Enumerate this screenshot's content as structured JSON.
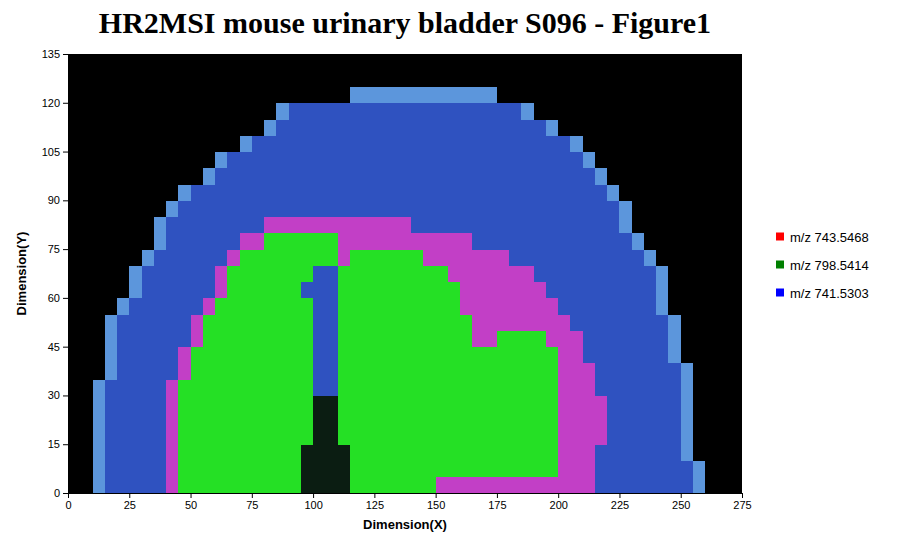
{
  "chart_data": {
    "type": "heatmap",
    "title": "HR2MSI mouse urinary bladder S096 - Figure1",
    "x_label": "Dimension(X)",
    "y_label": "Dimension(Y)",
    "xlim": [
      0,
      275
    ],
    "ylim": [
      0,
      135
    ],
    "xticks": [
      0,
      25,
      50,
      75,
      100,
      125,
      150,
      175,
      200,
      225,
      250,
      275
    ],
    "yticks": [
      0,
      15,
      30,
      45,
      60,
      75,
      90,
      105,
      120,
      135
    ],
    "legend": "right",
    "series": [
      {
        "name": "m/z 743.5468",
        "color": "#ff0000"
      },
      {
        "name": "m/z 798.5414",
        "color": "#008000"
      },
      {
        "name": "m/z 741.5303",
        "color": "#0000ff"
      }
    ],
    "x_bins": [
      0,
      5,
      10,
      15,
      20,
      25,
      30,
      35,
      40,
      45,
      50,
      55,
      60,
      65,
      70,
      75,
      80,
      85,
      90,
      95,
      100,
      105,
      110,
      115,
      120,
      125,
      130,
      135,
      140,
      145,
      150,
      155,
      160,
      165,
      170,
      175,
      180,
      185,
      190,
      195,
      200,
      205,
      210,
      215,
      220,
      225,
      230,
      235,
      240,
      245,
      250,
      255,
      260,
      265,
      270,
      275
    ],
    "y_bins": [
      0,
      5,
      10,
      15,
      20,
      25,
      30,
      35,
      40,
      45,
      50,
      55,
      60,
      65,
      70,
      75,
      80,
      85,
      90,
      95,
      100,
      105,
      110,
      115,
      120,
      125,
      130,
      135
    ],
    "cell_colors": [
      "#000000",
      "#2f52c0",
      "#5c96dc",
      "#c23fc6",
      "#25e025",
      "#0b1d12"
    ],
    "cells": [
      [
        0,
        0,
        2,
        1,
        1,
        1,
        1,
        1,
        3,
        4,
        4,
        4,
        4,
        4,
        4,
        4,
        4,
        4,
        4,
        5,
        5,
        5,
        5,
        4,
        4,
        4,
        4,
        4,
        4,
        4,
        3,
        3,
        3,
        3,
        3,
        3,
        3,
        3,
        3,
        3,
        3,
        3,
        3,
        1,
        1,
        1,
        1,
        1,
        1,
        1,
        1,
        2,
        0,
        0,
        0
      ],
      [
        0,
        0,
        2,
        1,
        1,
        1,
        1,
        1,
        3,
        4,
        4,
        4,
        4,
        4,
        4,
        4,
        4,
        4,
        4,
        5,
        5,
        5,
        5,
        4,
        4,
        4,
        4,
        4,
        4,
        4,
        4,
        4,
        4,
        4,
        4,
        4,
        4,
        4,
        4,
        4,
        3,
        3,
        3,
        1,
        1,
        1,
        1,
        1,
        1,
        1,
        1,
        2,
        0,
        0,
        0
      ],
      [
        0,
        0,
        2,
        1,
        1,
        1,
        1,
        1,
        3,
        4,
        4,
        4,
        4,
        4,
        4,
        4,
        4,
        4,
        4,
        5,
        5,
        5,
        5,
        4,
        4,
        4,
        4,
        4,
        4,
        4,
        4,
        4,
        4,
        4,
        4,
        4,
        4,
        4,
        4,
        4,
        3,
        3,
        3,
        1,
        1,
        1,
        1,
        1,
        1,
        1,
        2,
        0,
        0,
        0,
        0
      ],
      [
        0,
        0,
        2,
        1,
        1,
        1,
        1,
        1,
        3,
        4,
        4,
        4,
        4,
        4,
        4,
        4,
        4,
        4,
        4,
        4,
        5,
        5,
        4,
        4,
        4,
        4,
        4,
        4,
        4,
        4,
        4,
        4,
        4,
        4,
        4,
        4,
        4,
        4,
        4,
        4,
        3,
        3,
        3,
        3,
        1,
        1,
        1,
        1,
        1,
        1,
        2,
        0,
        0,
        0,
        0
      ],
      [
        0,
        0,
        2,
        1,
        1,
        1,
        1,
        1,
        3,
        4,
        4,
        4,
        4,
        4,
        4,
        4,
        4,
        4,
        4,
        4,
        5,
        5,
        4,
        4,
        4,
        4,
        4,
        4,
        4,
        4,
        4,
        4,
        4,
        4,
        4,
        4,
        4,
        4,
        4,
        4,
        3,
        3,
        3,
        3,
        1,
        1,
        1,
        1,
        1,
        1,
        2,
        0,
        0,
        0,
        0
      ],
      [
        0,
        0,
        2,
        1,
        1,
        1,
        1,
        1,
        3,
        4,
        4,
        4,
        4,
        4,
        4,
        4,
        4,
        4,
        4,
        4,
        5,
        5,
        4,
        4,
        4,
        4,
        4,
        4,
        4,
        4,
        4,
        4,
        4,
        4,
        4,
        4,
        4,
        4,
        4,
        4,
        3,
        3,
        3,
        3,
        1,
        1,
        1,
        1,
        1,
        1,
        2,
        0,
        0,
        0,
        0
      ],
      [
        0,
        0,
        2,
        1,
        1,
        1,
        1,
        1,
        3,
        4,
        4,
        4,
        4,
        4,
        4,
        4,
        4,
        4,
        4,
        4,
        1,
        1,
        4,
        4,
        4,
        4,
        4,
        4,
        4,
        4,
        4,
        4,
        4,
        4,
        4,
        4,
        4,
        4,
        4,
        4,
        3,
        3,
        3,
        1,
        1,
        1,
        1,
        1,
        1,
        1,
        2,
        0,
        0,
        0,
        0
      ],
      [
        0,
        0,
        0,
        2,
        1,
        1,
        1,
        1,
        1,
        3,
        4,
        4,
        4,
        4,
        4,
        4,
        4,
        4,
        4,
        4,
        1,
        1,
        4,
        4,
        4,
        4,
        4,
        4,
        4,
        4,
        4,
        4,
        4,
        4,
        4,
        4,
        4,
        4,
        4,
        4,
        3,
        3,
        3,
        1,
        1,
        1,
        1,
        1,
        1,
        1,
        2,
        0,
        0,
        0,
        0
      ],
      [
        0,
        0,
        0,
        2,
        1,
        1,
        1,
        1,
        1,
        3,
        4,
        4,
        4,
        4,
        4,
        4,
        4,
        4,
        4,
        4,
        1,
        1,
        4,
        4,
        4,
        4,
        4,
        4,
        4,
        4,
        4,
        4,
        4,
        4,
        4,
        4,
        4,
        4,
        4,
        4,
        3,
        3,
        1,
        1,
        1,
        1,
        1,
        1,
        1,
        2,
        0,
        0,
        0,
        0,
        0
      ],
      [
        0,
        0,
        0,
        2,
        1,
        1,
        1,
        1,
        1,
        1,
        3,
        4,
        4,
        4,
        4,
        4,
        4,
        4,
        4,
        4,
        1,
        1,
        4,
        4,
        4,
        4,
        4,
        4,
        4,
        4,
        4,
        4,
        4,
        3,
        3,
        4,
        4,
        4,
        4,
        3,
        3,
        3,
        1,
        1,
        1,
        1,
        1,
        1,
        1,
        2,
        0,
        0,
        0,
        0,
        0
      ],
      [
        0,
        0,
        0,
        2,
        1,
        1,
        1,
        1,
        1,
        1,
        3,
        4,
        4,
        4,
        4,
        4,
        4,
        4,
        4,
        4,
        1,
        1,
        4,
        4,
        4,
        4,
        4,
        4,
        4,
        4,
        4,
        4,
        4,
        3,
        3,
        3,
        3,
        3,
        3,
        3,
        3,
        1,
        1,
        1,
        1,
        1,
        1,
        1,
        1,
        2,
        0,
        0,
        0,
        0,
        0
      ],
      [
        0,
        0,
        0,
        0,
        2,
        1,
        1,
        1,
        1,
        1,
        1,
        3,
        4,
        4,
        4,
        4,
        4,
        4,
        4,
        4,
        1,
        1,
        4,
        4,
        4,
        4,
        4,
        4,
        4,
        4,
        4,
        4,
        3,
        3,
        3,
        3,
        3,
        3,
        3,
        3,
        1,
        1,
        1,
        1,
        1,
        1,
        1,
        1,
        2,
        0,
        0,
        0,
        0,
        0,
        0
      ],
      [
        0,
        0,
        0,
        0,
        0,
        2,
        1,
        1,
        1,
        1,
        1,
        1,
        3,
        4,
        4,
        4,
        4,
        4,
        4,
        1,
        1,
        1,
        4,
        4,
        4,
        4,
        4,
        4,
        4,
        4,
        4,
        4,
        3,
        3,
        3,
        3,
        3,
        3,
        3,
        1,
        1,
        1,
        1,
        1,
        1,
        1,
        1,
        1,
        2,
        0,
        0,
        0,
        0,
        0,
        0
      ],
      [
        0,
        0,
        0,
        0,
        0,
        2,
        1,
        1,
        1,
        1,
        1,
        1,
        3,
        4,
        4,
        4,
        4,
        4,
        4,
        4,
        1,
        1,
        4,
        4,
        4,
        4,
        4,
        4,
        4,
        4,
        4,
        3,
        3,
        3,
        3,
        3,
        3,
        3,
        1,
        1,
        1,
        1,
        1,
        1,
        1,
        1,
        1,
        1,
        2,
        0,
        0,
        0,
        0,
        0,
        0
      ],
      [
        0,
        0,
        0,
        0,
        0,
        0,
        2,
        1,
        1,
        1,
        1,
        1,
        1,
        3,
        4,
        4,
        4,
        4,
        4,
        4,
        4,
        4,
        3,
        4,
        4,
        4,
        4,
        4,
        4,
        3,
        3,
        3,
        3,
        3,
        3,
        3,
        1,
        1,
        1,
        1,
        1,
        1,
        1,
        1,
        1,
        1,
        1,
        2,
        0,
        0,
        0,
        0,
        0,
        0,
        0
      ],
      [
        0,
        0,
        0,
        0,
        0,
        0,
        0,
        2,
        1,
        1,
        1,
        1,
        1,
        1,
        3,
        3,
        4,
        4,
        4,
        4,
        4,
        4,
        3,
        3,
        3,
        3,
        3,
        3,
        3,
        3,
        3,
        3,
        3,
        1,
        1,
        1,
        1,
        1,
        1,
        1,
        1,
        1,
        1,
        1,
        1,
        1,
        2,
        0,
        0,
        0,
        0,
        0,
        0,
        0,
        0
      ],
      [
        0,
        0,
        0,
        0,
        0,
        0,
        0,
        2,
        1,
        1,
        1,
        1,
        1,
        1,
        1,
        1,
        3,
        3,
        3,
        3,
        3,
        3,
        3,
        3,
        3,
        3,
        3,
        3,
        1,
        1,
        1,
        1,
        1,
        1,
        1,
        1,
        1,
        1,
        1,
        1,
        1,
        1,
        1,
        1,
        1,
        2,
        0,
        0,
        0,
        0,
        0,
        0,
        0,
        0,
        0
      ],
      [
        0,
        0,
        0,
        0,
        0,
        0,
        0,
        0,
        2,
        1,
        1,
        1,
        1,
        1,
        1,
        1,
        1,
        1,
        1,
        1,
        1,
        1,
        1,
        1,
        1,
        1,
        1,
        1,
        1,
        1,
        1,
        1,
        1,
        1,
        1,
        1,
        1,
        1,
        1,
        1,
        1,
        1,
        1,
        1,
        1,
        2,
        0,
        0,
        0,
        0,
        0,
        0,
        0,
        0,
        0
      ],
      [
        0,
        0,
        0,
        0,
        0,
        0,
        0,
        0,
        0,
        2,
        1,
        1,
        1,
        1,
        1,
        1,
        1,
        1,
        1,
        1,
        1,
        1,
        1,
        1,
        1,
        1,
        1,
        1,
        1,
        1,
        1,
        1,
        1,
        1,
        1,
        1,
        1,
        1,
        1,
        1,
        1,
        1,
        1,
        1,
        2,
        0,
        0,
        0,
        0,
        0,
        0,
        0,
        0,
        0,
        0
      ],
      [
        0,
        0,
        0,
        0,
        0,
        0,
        0,
        0,
        0,
        0,
        0,
        2,
        1,
        1,
        1,
        1,
        1,
        1,
        1,
        1,
        1,
        1,
        1,
        1,
        1,
        1,
        1,
        1,
        1,
        1,
        1,
        1,
        1,
        1,
        1,
        1,
        1,
        1,
        1,
        1,
        1,
        1,
        1,
        2,
        0,
        0,
        0,
        0,
        0,
        0,
        0,
        0,
        0,
        0,
        0
      ],
      [
        0,
        0,
        0,
        0,
        0,
        0,
        0,
        0,
        0,
        0,
        0,
        0,
        2,
        1,
        1,
        1,
        1,
        1,
        1,
        1,
        1,
        1,
        1,
        1,
        1,
        1,
        1,
        1,
        1,
        1,
        1,
        1,
        1,
        1,
        1,
        1,
        1,
        1,
        1,
        1,
        1,
        1,
        2,
        0,
        0,
        0,
        0,
        0,
        0,
        0,
        0,
        0,
        0,
        0,
        0
      ],
      [
        0,
        0,
        0,
        0,
        0,
        0,
        0,
        0,
        0,
        0,
        0,
        0,
        0,
        0,
        2,
        1,
        1,
        1,
        1,
        1,
        1,
        1,
        1,
        1,
        1,
        1,
        1,
        1,
        1,
        1,
        1,
        1,
        1,
        1,
        1,
        1,
        1,
        1,
        1,
        1,
        1,
        2,
        0,
        0,
        0,
        0,
        0,
        0,
        0,
        0,
        0,
        0,
        0,
        0,
        0
      ],
      [
        0,
        0,
        0,
        0,
        0,
        0,
        0,
        0,
        0,
        0,
        0,
        0,
        0,
        0,
        0,
        0,
        2,
        1,
        1,
        1,
        1,
        1,
        1,
        1,
        1,
        1,
        1,
        1,
        1,
        1,
        1,
        1,
        1,
        1,
        1,
        1,
        1,
        1,
        1,
        2,
        0,
        0,
        0,
        0,
        0,
        0,
        0,
        0,
        0,
        0,
        0,
        0,
        0,
        0,
        0
      ],
      [
        0,
        0,
        0,
        0,
        0,
        0,
        0,
        0,
        0,
        0,
        0,
        0,
        0,
        0,
        0,
        0,
        0,
        2,
        1,
        1,
        1,
        1,
        1,
        1,
        1,
        1,
        1,
        1,
        1,
        1,
        1,
        1,
        1,
        1,
        1,
        1,
        1,
        2,
        0,
        0,
        0,
        0,
        0,
        0,
        0,
        0,
        0,
        0,
        0,
        0,
        0,
        0,
        0,
        0,
        0
      ],
      [
        0,
        0,
        0,
        0,
        0,
        0,
        0,
        0,
        0,
        0,
        0,
        0,
        0,
        0,
        0,
        0,
        0,
        0,
        0,
        0,
        0,
        0,
        0,
        2,
        2,
        2,
        2,
        2,
        2,
        2,
        2,
        2,
        2,
        2,
        2,
        0,
        0,
        0,
        0,
        0,
        0,
        0,
        0,
        0,
        0,
        0,
        0,
        0,
        0,
        0,
        0,
        0,
        0,
        0,
        0
      ],
      [
        0,
        0,
        0,
        0,
        0,
        0,
        0,
        0,
        0,
        0,
        0,
        0,
        0,
        0,
        0,
        0,
        0,
        0,
        0,
        0,
        0,
        0,
        0,
        0,
        0,
        0,
        0,
        0,
        0,
        0,
        0,
        0,
        0,
        0,
        0,
        0,
        0,
        0,
        0,
        0,
        0,
        0,
        0,
        0,
        0,
        0,
        0,
        0,
        0,
        0,
        0,
        0,
        0,
        0,
        0
      ],
      [
        0,
        0,
        0,
        0,
        0,
        0,
        0,
        0,
        0,
        0,
        0,
        0,
        0,
        0,
        0,
        0,
        0,
        0,
        0,
        0,
        0,
        0,
        0,
        0,
        0,
        0,
        0,
        0,
        0,
        0,
        0,
        0,
        0,
        0,
        0,
        0,
        0,
        0,
        0,
        0,
        0,
        0,
        0,
        0,
        0,
        0,
        0,
        0,
        0,
        0,
        0,
        0,
        0,
        0,
        0
      ]
    ]
  }
}
